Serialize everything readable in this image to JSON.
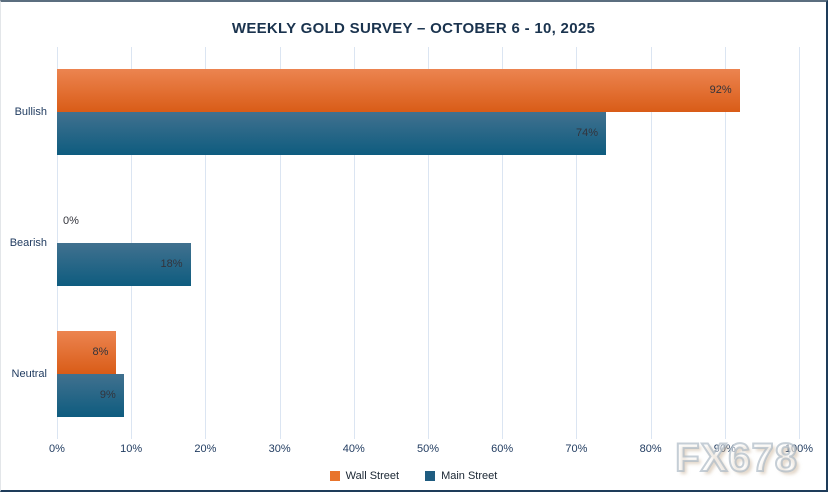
{
  "chart_data": {
    "type": "bar",
    "orientation": "horizontal",
    "title": "WEEKLY GOLD SURVEY – OCTOBER 6 - 10, 2025",
    "categories": [
      "Bullish",
      "Bearish",
      "Neutral"
    ],
    "series": [
      {
        "name": "Wall Street",
        "values": [
          92,
          0,
          8
        ],
        "color_top": "#ec8450",
        "color_bottom": "#d95c17",
        "legend_color": "#e8742c"
      },
      {
        "name": "Main Street",
        "values": [
          74,
          18,
          9
        ],
        "color_top": "#41718f",
        "color_bottom": "#0e5c7f",
        "legend_color": "#1f5c80"
      }
    ],
    "value_suffix": "%",
    "data_labels": {
      "wall_street": [
        "92%",
        "0%",
        "8%"
      ],
      "main_street": [
        "74%",
        "18%",
        "9%"
      ]
    },
    "x_ticks": [
      "0%",
      "10%",
      "20%",
      "30%",
      "40%",
      "50%",
      "60%",
      "70%",
      "80%",
      "90%",
      "100%"
    ],
    "xlim": [
      0,
      100
    ],
    "grid": true,
    "legend_position": "bottom"
  },
  "watermark": {
    "text": "FX678"
  },
  "colors": {
    "title_text": "#1a334e",
    "axis_text": "#1f3a5f",
    "gridline": "#dbe5f2",
    "value_label_text": "#33343c",
    "wall_street_orange": "#e8742c",
    "main_street_blue": "#1f5c80",
    "background": "#ffffff"
  }
}
